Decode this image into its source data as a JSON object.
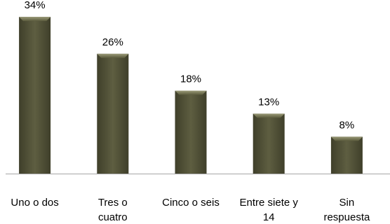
{
  "chart_data": {
    "type": "bar",
    "categories": [
      [
        "Uno o dos"
      ],
      [
        "Tres o",
        "cuatro"
      ],
      [
        "Cinco o seis"
      ],
      [
        "Entre siete y",
        "14"
      ],
      [
        "Sin",
        "respuesta"
      ]
    ],
    "values": [
      34,
      26,
      18,
      13,
      8
    ],
    "data_labels": [
      "34%",
      "26%",
      "18%",
      "13%",
      "8%"
    ],
    "unit": "%",
    "ylim": [
      0,
      36
    ],
    "grid": false,
    "legend": "none",
    "bar_color": "#5a5a3c",
    "bar_highlight_color": "#8a8a66",
    "axis_color": "#a6a6a6"
  }
}
